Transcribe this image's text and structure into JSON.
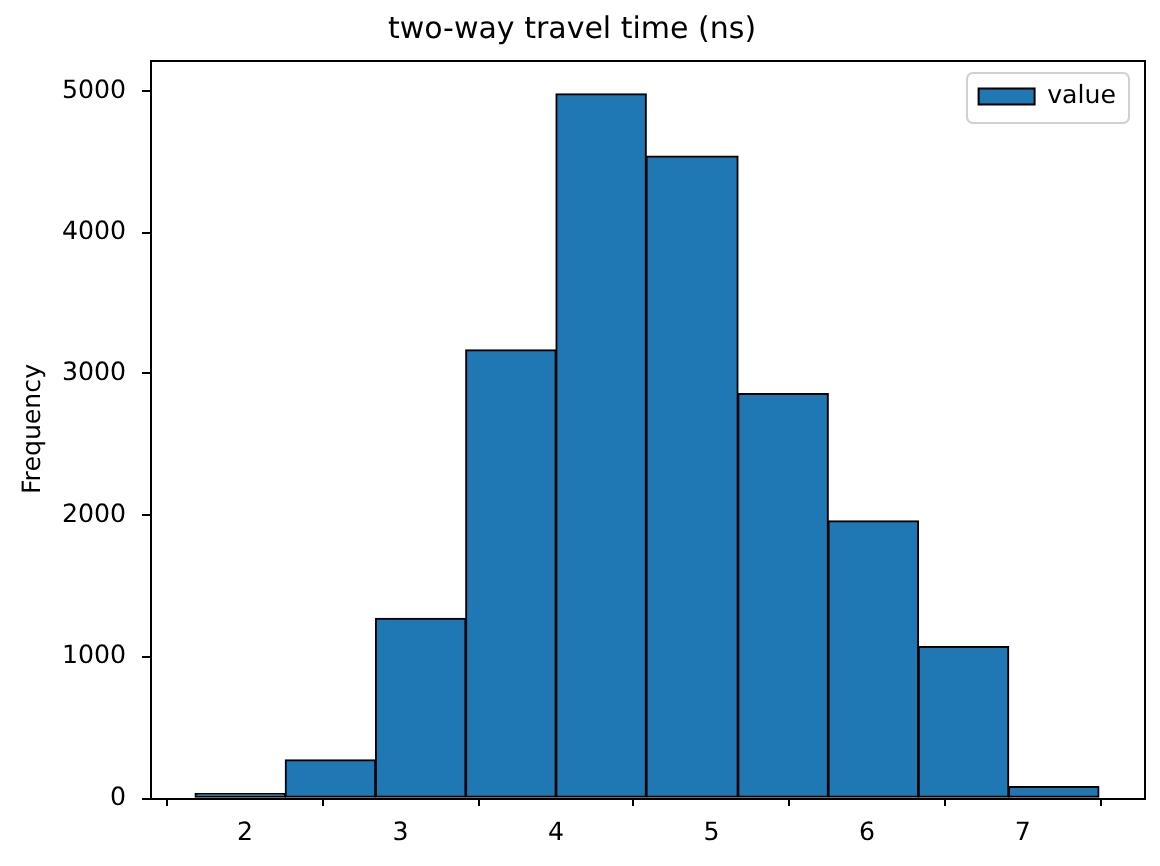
{
  "chart_data": {
    "type": "histogram",
    "title": "two-way travel time (ns)",
    "ylabel": "Frequency",
    "bins": [
      1.68,
      2.26,
      2.84,
      3.42,
      4.0,
      4.58,
      5.17,
      5.75,
      6.33,
      6.91,
      7.49
    ],
    "series": [
      {
        "name": "value",
        "color": "#1f77b4",
        "values": [
          30,
          270,
          1270,
          3170,
          4980,
          4540,
          2860,
          1960,
          1070,
          80
        ]
      }
    ],
    "xlim": [
      1.39,
      7.78
    ],
    "xticks": [
      2,
      3,
      4,
      5,
      6,
      7
    ],
    "ylim": [
      0,
      5220
    ],
    "yticks": [
      0,
      1000,
      2000,
      3000,
      4000,
      5000
    ],
    "legend": "top right"
  }
}
